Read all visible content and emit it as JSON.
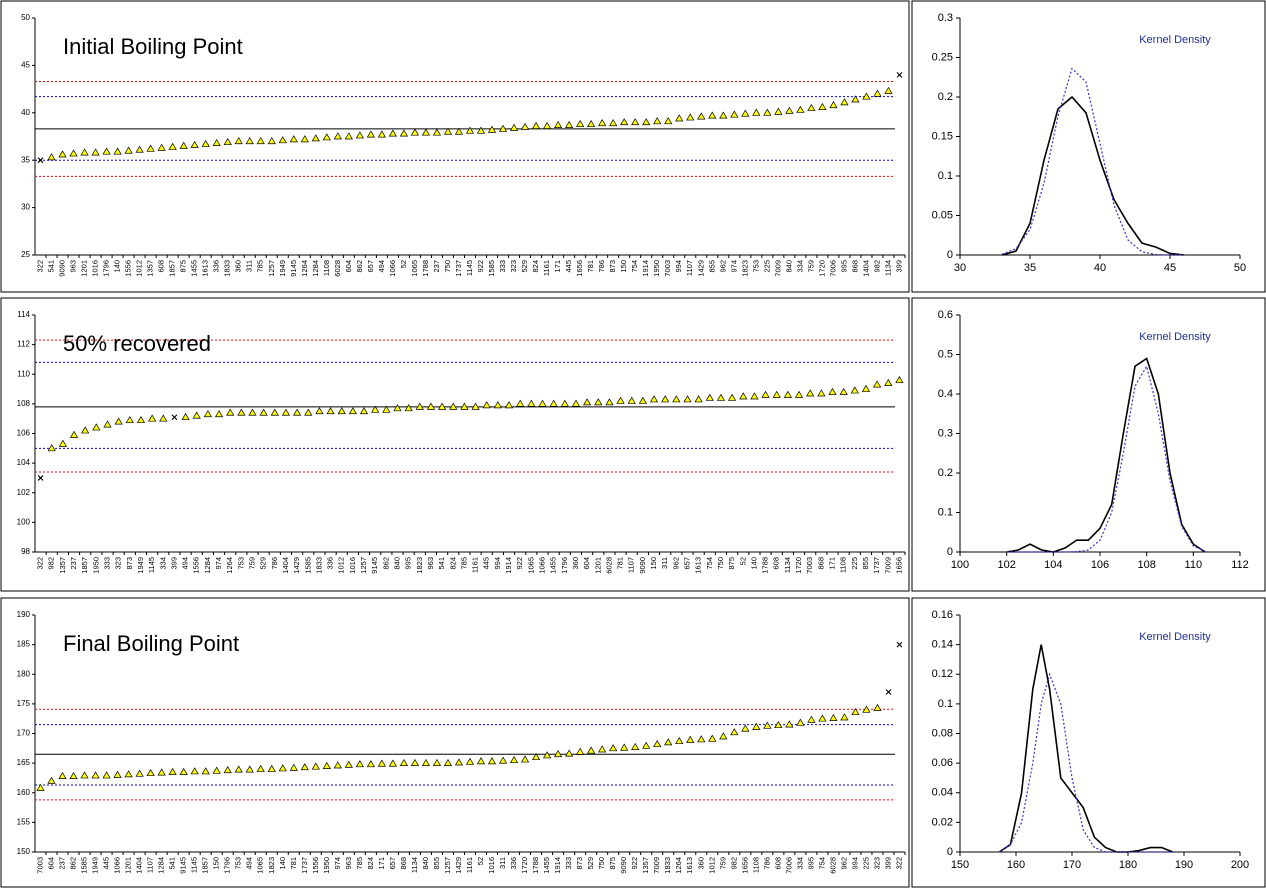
{
  "chart_data": [
    {
      "type": "dot",
      "title": "Initial Boiling Point",
      "color": "#ffff00",
      "categories": [
        "322",
        "541",
        "9090",
        "963",
        "1201",
        "1016",
        "1796",
        "140",
        "1556",
        "1012",
        "1357",
        "608",
        "1857",
        "875",
        "1455",
        "1613",
        "336",
        "1833",
        "360",
        "311",
        "785",
        "1257",
        "1949",
        "9145",
        "1264",
        "1284",
        "1108",
        "6028",
        "604",
        "862",
        "657",
        "494",
        "1066",
        "52",
        "1065",
        "1788",
        "237",
        "750",
        "1737",
        "1145",
        "922",
        "1585",
        "333",
        "323",
        "529",
        "824",
        "1161",
        "171",
        "445",
        "1656",
        "781",
        "786",
        "873",
        "150",
        "754",
        "1914",
        "1950",
        "7003",
        "994",
        "1107",
        "1429",
        "855",
        "962",
        "974",
        "1823",
        "753",
        "225",
        "7009",
        "840",
        "334",
        "759",
        "1720",
        "7006",
        "995",
        "868",
        "1404",
        "982",
        "1134",
        "399"
      ],
      "values": [
        35.0,
        35.3,
        35.6,
        35.7,
        35.8,
        35.8,
        35.9,
        35.9,
        36.0,
        36.1,
        36.2,
        36.3,
        36.4,
        36.5,
        36.6,
        36.7,
        36.8,
        36.9,
        37.0,
        37.0,
        37.0,
        37.0,
        37.1,
        37.2,
        37.2,
        37.3,
        37.4,
        37.5,
        37.5,
        37.6,
        37.7,
        37.7,
        37.8,
        37.8,
        37.9,
        37.9,
        37.9,
        38.0,
        38.0,
        38.1,
        38.1,
        38.2,
        38.3,
        38.4,
        38.5,
        38.6,
        38.6,
        38.7,
        38.7,
        38.8,
        38.8,
        38.9,
        38.9,
        39.0,
        39.0,
        39.0,
        39.1,
        39.1,
        39.4,
        39.5,
        39.6,
        39.7,
        39.7,
        39.8,
        39.9,
        40.0,
        40.0,
        40.1,
        40.2,
        40.3,
        40.5,
        40.6,
        40.8,
        41.1,
        41.4,
        41.7,
        42.0,
        42.3,
        44.0
      ],
      "x_marked": [
        0,
        78
      ],
      "ylim": [
        25,
        50
      ],
      "yticks": [
        25,
        30,
        35,
        40,
        45,
        50
      ],
      "reference_lines": [
        {
          "value": 38.3,
          "color": "#000000",
          "style": "solid"
        },
        {
          "value": 41.7,
          "color": "#0000ff",
          "style": "dotted"
        },
        {
          "value": 35.0,
          "color": "#0000ff",
          "style": "dotted"
        },
        {
          "value": 43.3,
          "color": "#ff0000",
          "style": "dotted"
        },
        {
          "value": 33.3,
          "color": "#ff0000",
          "style": "dotted"
        }
      ]
    },
    {
      "type": "line",
      "annotation": "Kernel Density",
      "x": [
        33,
        34,
        35,
        36,
        37,
        38,
        39,
        40,
        41,
        42,
        43,
        44,
        45,
        46
      ],
      "series": [
        {
          "color": "#000000",
          "style": "solid",
          "values": [
            0,
            0.005,
            0.04,
            0.12,
            0.185,
            0.2,
            0.18,
            0.12,
            0.07,
            0.04,
            0.015,
            0.01,
            0.002,
            0
          ]
        },
        {
          "color": "#3333cc",
          "style": "dotted",
          "values": [
            0.001,
            0.008,
            0.032,
            0.091,
            0.176,
            0.236,
            0.219,
            0.141,
            0.063,
            0.019,
            0.004,
            0.0005,
            0,
            0
          ]
        }
      ],
      "xlim": [
        30,
        50
      ],
      "xticks": [
        30,
        35,
        40,
        45,
        50
      ],
      "ylim": [
        0,
        0.3
      ],
      "yticks": [
        0,
        0.05,
        0.1,
        0.15,
        0.2,
        0.25,
        0.3
      ]
    },
    {
      "type": "dot",
      "title": "50% recovered",
      "color": "#ffff00",
      "categories": [
        "322",
        "982",
        "1357",
        "237",
        "1857",
        "1950",
        "333",
        "323",
        "873",
        "1949",
        "1145",
        "334",
        "399",
        "494",
        "1556",
        "1284",
        "974",
        "1264",
        "753",
        "759",
        "529",
        "786",
        "1404",
        "1429",
        "1585",
        "1833",
        "336",
        "1012",
        "1016",
        "1257",
        "9145",
        "862",
        "840",
        "995",
        "1823",
        "963",
        "541",
        "824",
        "785",
        "1161",
        "445",
        "994",
        "1914",
        "922",
        "1065",
        "1066",
        "1455",
        "1796",
        "360",
        "604",
        "1201",
        "6028",
        "781",
        "1107",
        "9090",
        "150",
        "311",
        "962",
        "657",
        "1613",
        "754",
        "750",
        "875",
        "52",
        "140",
        "1788",
        "608",
        "1134",
        "1720",
        "7003",
        "868",
        "171",
        "1108",
        "225",
        "855",
        "1737",
        "7009",
        "1656"
      ],
      "values": [
        103.0,
        105.0,
        105.3,
        105.9,
        106.2,
        106.4,
        106.6,
        106.8,
        106.9,
        106.9,
        107.0,
        107.0,
        107.1,
        107.1,
        107.2,
        107.3,
        107.3,
        107.4,
        107.4,
        107.4,
        107.4,
        107.4,
        107.4,
        107.4,
        107.4,
        107.5,
        107.5,
        107.5,
        107.5,
        107.5,
        107.6,
        107.6,
        107.7,
        107.7,
        107.8,
        107.8,
        107.8,
        107.8,
        107.8,
        107.8,
        107.9,
        107.9,
        107.9,
        108.0,
        108.0,
        108.0,
        108.0,
        108.0,
        108.0,
        108.1,
        108.1,
        108.1,
        108.2,
        108.2,
        108.2,
        108.3,
        108.3,
        108.3,
        108.3,
        108.3,
        108.4,
        108.4,
        108.4,
        108.5,
        108.5,
        108.6,
        108.6,
        108.6,
        108.6,
        108.7,
        108.7,
        108.8,
        108.8,
        108.9,
        109.0,
        109.3,
        109.4,
        109.6
      ],
      "x_marked": [
        0,
        12
      ],
      "ylim": [
        98,
        114
      ],
      "yticks": [
        98,
        100,
        102,
        104,
        106,
        108,
        110,
        112,
        114
      ],
      "reference_lines": [
        {
          "value": 107.8,
          "color": "#000000",
          "style": "solid"
        },
        {
          "value": 110.8,
          "color": "#0000ff",
          "style": "dotted"
        },
        {
          "value": 105.0,
          "color": "#0000ff",
          "style": "dotted"
        },
        {
          "value": 112.3,
          "color": "#ff0000",
          "style": "dotted"
        },
        {
          "value": 103.4,
          "color": "#ff0000",
          "style": "dotted"
        }
      ]
    },
    {
      "type": "line",
      "annotation": "Kernel Density",
      "x": [
        102,
        102.5,
        103,
        103.5,
        104,
        104.5,
        105,
        105.5,
        106,
        106.5,
        107,
        107.5,
        108,
        108.5,
        109,
        109.5,
        110,
        110.5
      ],
      "series": [
        {
          "color": "#000000",
          "style": "solid",
          "values": [
            0,
            0.005,
            0.02,
            0.005,
            0,
            0.01,
            0.03,
            0.03,
            0.06,
            0.12,
            0.3,
            0.47,
            0.49,
            0.4,
            0.2,
            0.07,
            0.02,
            0
          ]
        },
        {
          "color": "#3333cc",
          "style": "dotted",
          "values": [
            0,
            0,
            0,
            0,
            0,
            0,
            0.001,
            0.005,
            0.03,
            0.1,
            0.25,
            0.42,
            0.47,
            0.35,
            0.18,
            0.065,
            0.015,
            0.002
          ]
        }
      ],
      "xlim": [
        100,
        112
      ],
      "xticks": [
        100,
        102,
        104,
        106,
        108,
        110,
        112
      ],
      "ylim": [
        0,
        0.6
      ],
      "yticks": [
        0,
        0.1,
        0.2,
        0.3,
        0.4,
        0.5,
        0.6
      ]
    },
    {
      "type": "dot",
      "title": "Final Boiling Point",
      "color": "#ffff00",
      "categories": [
        "7003",
        "604",
        "237",
        "862",
        "1585",
        "1949",
        "445",
        "1066",
        "1201",
        "1404",
        "1107",
        "1284",
        "541",
        "9145",
        "1145",
        "1857",
        "150",
        "1796",
        "753",
        "494",
        "1065",
        "1823",
        "140",
        "781",
        "1737",
        "1556",
        "1950",
        "974",
        "963",
        "785",
        "824",
        "171",
        "657",
        "868",
        "1134",
        "840",
        "855",
        "1257",
        "1429",
        "1161",
        "52",
        "1016",
        "311",
        "336",
        "1720",
        "1788",
        "1455",
        "1914",
        "333",
        "873",
        "529",
        "750",
        "875",
        "9090",
        "922",
        "1357",
        "7009",
        "1833",
        "1264",
        "1613",
        "360",
        "1012",
        "759",
        "982",
        "1656",
        "1108",
        "786",
        "608",
        "7006",
        "334",
        "995",
        "754",
        "6028",
        "962",
        "994",
        "225",
        "323",
        "399",
        "322"
      ],
      "values": [
        160.8,
        162.0,
        162.8,
        162.8,
        162.9,
        162.9,
        162.9,
        163.0,
        163.1,
        163.2,
        163.3,
        163.4,
        163.5,
        163.5,
        163.6,
        163.6,
        163.7,
        163.8,
        163.9,
        163.9,
        164.0,
        164.0,
        164.1,
        164.2,
        164.3,
        164.4,
        164.5,
        164.6,
        164.7,
        164.8,
        164.8,
        164.9,
        164.9,
        165.0,
        165.0,
        165.0,
        165.0,
        165.0,
        165.1,
        165.2,
        165.3,
        165.3,
        165.4,
        165.5,
        165.6,
        166.0,
        166.3,
        166.5,
        166.6,
        166.9,
        167.1,
        167.3,
        167.5,
        167.6,
        167.7,
        167.9,
        168.2,
        168.5,
        168.7,
        168.9,
        169.0,
        169.1,
        169.5,
        170.2,
        170.8,
        171.1,
        171.3,
        171.4,
        171.5,
        171.8,
        172.3,
        172.5,
        172.6,
        172.7,
        173.6,
        174.0,
        174.3,
        177.0,
        185.0
      ],
      "x_marked": [
        77,
        78
      ],
      "ylim": [
        150,
        190
      ],
      "yticks": [
        150,
        155,
        160,
        165,
        170,
        175,
        180,
        185,
        190
      ],
      "reference_lines": [
        {
          "value": 166.5,
          "color": "#000000",
          "style": "solid"
        },
        {
          "value": 171.5,
          "color": "#0000ff",
          "style": "dotted"
        },
        {
          "value": 161.3,
          "color": "#0000ff",
          "style": "dotted"
        },
        {
          "value": 174.1,
          "color": "#ff0000",
          "style": "dotted"
        },
        {
          "value": 158.8,
          "color": "#ff0000",
          "style": "dotted"
        }
      ]
    },
    {
      "type": "line",
      "annotation": "Kernel Density",
      "x": [
        157,
        159,
        161,
        163,
        164.5,
        166,
        168,
        170,
        172,
        174,
        176,
        178,
        180,
        182,
        184,
        186,
        188
      ],
      "series": [
        {
          "color": "#000000",
          "style": "solid",
          "values": [
            0,
            0.005,
            0.04,
            0.11,
            0.14,
            0.11,
            0.05,
            0.04,
            0.03,
            0.01,
            0.003,
            0,
            0,
            0.001,
            0.003,
            0.003,
            0
          ]
        },
        {
          "color": "#3333cc",
          "style": "dotted",
          "values": [
            0,
            0.005,
            0.02,
            0.06,
            0.1,
            0.12,
            0.1,
            0.05,
            0.015,
            0.003,
            0,
            0,
            0,
            0,
            0,
            0,
            0
          ]
        }
      ],
      "xlim": [
        150,
        200
      ],
      "xticks": [
        150,
        160,
        170,
        180,
        190,
        200
      ],
      "ylim": [
        0,
        0.16
      ],
      "yticks": [
        0,
        0.02,
        0.04,
        0.06,
        0.08,
        0.1,
        0.12,
        0.14,
        0.16
      ]
    }
  ]
}
